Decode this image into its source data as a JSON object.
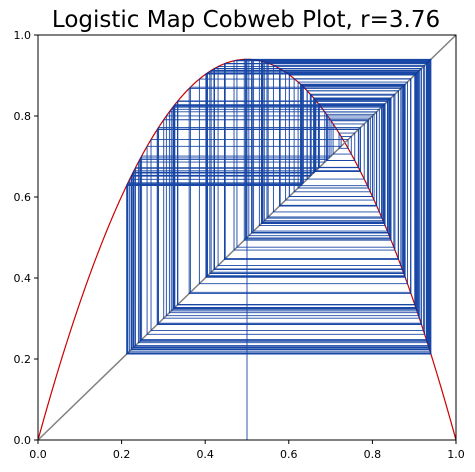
{
  "chart_data": {
    "type": "line",
    "title": "Logistic Map Cobweb Plot, r=3.76",
    "xlabel": "",
    "ylabel": "",
    "r": 3.76,
    "x0": 0.5,
    "iterations": 200,
    "xlim": [
      0.0,
      1.0
    ],
    "ylim": [
      0.0,
      1.0
    ],
    "x_ticks": [
      "0.0",
      "0.2",
      "0.4",
      "0.6",
      "0.8",
      "1.0"
    ],
    "y_ticks": [
      "0.0",
      "0.2",
      "0.4",
      "0.6",
      "0.8",
      "1.0"
    ],
    "grid": false,
    "series": [
      {
        "role": "logistic-curve",
        "formula": "y = r*x*(1-x)",
        "color": "#cc0000"
      },
      {
        "role": "identity-line",
        "formula": "y = x",
        "color": "#808080"
      },
      {
        "role": "cobweb",
        "color": "#00339c"
      }
    ]
  }
}
